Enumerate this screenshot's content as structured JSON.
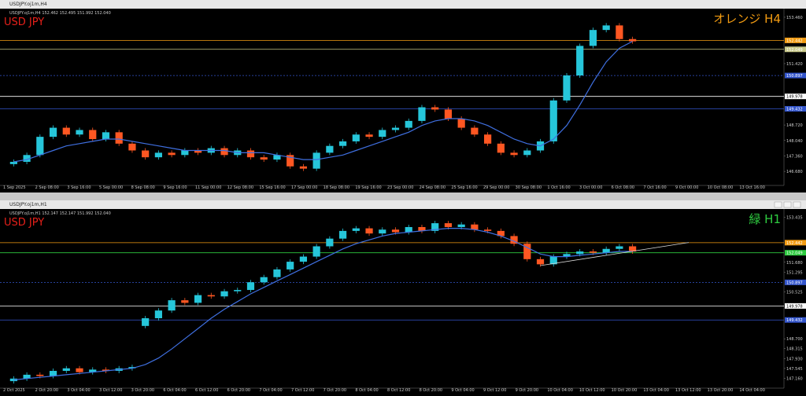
{
  "chart_data": [
    {
      "type": "candlestick",
      "title": "USDJPY.oj1m,H4",
      "header": "USDJPY.oj1m,H4 152.462 152.495 151.992 152.040",
      "symbol_label": "USD JPY",
      "tf_label": "オレンジ H4",
      "tf_color": "#f39c12",
      "up_color": "#26c6da",
      "down_color": "#ff5722",
      "ma_color": "#3f6fe0",
      "open": [
        147.0,
        147.1,
        147.4,
        148.2,
        148.6,
        148.3,
        148.5,
        148.1,
        148.4,
        147.9,
        147.6,
        147.3,
        147.5,
        147.4,
        147.6,
        147.5,
        147.7,
        147.4,
        147.6,
        147.3,
        147.2,
        147.4,
        146.9,
        146.8,
        147.5,
        147.8,
        148.0,
        148.3,
        148.2,
        148.5,
        148.6,
        148.9,
        149.5,
        149.4,
        149.0,
        148.6,
        148.3,
        147.9,
        147.5,
        147.4,
        147.6,
        148.0,
        149.8,
        150.9,
        152.2,
        152.9,
        153.1,
        152.5
      ],
      "close": [
        147.1,
        147.4,
        148.2,
        148.6,
        148.3,
        148.5,
        148.1,
        148.4,
        147.9,
        147.6,
        147.3,
        147.5,
        147.4,
        147.6,
        147.5,
        147.7,
        147.4,
        147.6,
        147.3,
        147.2,
        147.4,
        146.9,
        146.8,
        147.5,
        147.8,
        148.0,
        148.3,
        148.2,
        148.5,
        148.6,
        148.9,
        149.5,
        149.4,
        149.0,
        148.6,
        148.3,
        147.9,
        147.5,
        147.4,
        147.6,
        148.0,
        149.8,
        150.9,
        152.2,
        152.9,
        153.1,
        152.5,
        152.4
      ],
      "ma": [
        147.1,
        147.2,
        147.4,
        147.6,
        147.8,
        147.9,
        148.0,
        148.1,
        148.1,
        148.0,
        147.9,
        147.8,
        147.7,
        147.6,
        147.6,
        147.6,
        147.6,
        147.5,
        147.5,
        147.5,
        147.4,
        147.3,
        147.2,
        147.2,
        147.3,
        147.4,
        147.6,
        147.8,
        148.0,
        148.2,
        148.4,
        148.7,
        148.9,
        149.0,
        149.0,
        148.9,
        148.7,
        148.4,
        148.1,
        147.9,
        147.8,
        148.1,
        148.7,
        149.6,
        150.6,
        151.5,
        152.1,
        152.4
      ],
      "ylim": [
        146.2,
        153.7
      ],
      "yticks": [
        {
          "value": 146.68,
          "label": "146.680"
        },
        {
          "value": 147.36,
          "label": "147.360"
        },
        {
          "value": 148.04,
          "label": "148.040"
        },
        {
          "value": 148.72,
          "label": "148.720"
        },
        {
          "value": 151.42,
          "label": "151.420"
        },
        {
          "value": 153.46,
          "label": "153.460"
        }
      ],
      "levels": [
        {
          "value": 152.442,
          "label": "152.442",
          "color": "#f39c12",
          "dash": false
        },
        {
          "value": 152.049,
          "label": "152.049",
          "color": "#c9c98a",
          "dash": false
        },
        {
          "value": 150.897,
          "label": "150.897",
          "color": "#3355cc",
          "dash": true
        },
        {
          "value": 149.978,
          "label": "149.978",
          "color": "#ffffff",
          "dash": false
        },
        {
          "value": 149.432,
          "label": "149.432",
          "color": "#3355cc",
          "dash": false
        }
      ],
      "x_labels": [
        "1 Sep 2025",
        "2 Sep 08:00",
        "3 Sep 16:00",
        "5 Sep 00:00",
        "8 Sep 08:00",
        "9 Sep 16:00",
        "11 Sep 00:00",
        "12 Sep 08:00",
        "15 Sep 16:00",
        "17 Sep 00:00",
        "18 Sep 08:00",
        "19 Sep 16:00",
        "23 Sep 00:00",
        "24 Sep 08:00",
        "25 Sep 16:00",
        "29 Sep 00:00",
        "30 Sep 08:00",
        "1 Oct 16:00",
        "3 Oct 00:00",
        "6 Oct 08:00",
        "7 Oct 16:00",
        "9 Oct 00:00",
        "10 Oct 08:00",
        "13 Oct 16:00"
      ]
    },
    {
      "type": "candlestick",
      "title": "USDJPY.oj1m,H1",
      "header": "USDJPY.oj1m,H1 152.147 152.147 151.992 152.040",
      "symbol_label": "USD JPY",
      "tf_label": "緑 H1",
      "tf_color": "#2ecc40",
      "up_color": "#26c6da",
      "down_color": "#ff5722",
      "ma_color": "#3f6fe0",
      "open": [
        147.05,
        147.15,
        147.3,
        147.25,
        147.45,
        147.55,
        147.4,
        147.5,
        147.45,
        147.55,
        149.2,
        149.5,
        149.8,
        150.2,
        150.1,
        150.4,
        150.35,
        150.55,
        150.6,
        150.9,
        151.1,
        151.4,
        151.7,
        151.9,
        152.3,
        152.6,
        152.9,
        153.0,
        152.8,
        152.95,
        152.85,
        153.05,
        152.9,
        153.2,
        153.05,
        153.15,
        152.95,
        152.9,
        152.7,
        152.4,
        151.8,
        151.6,
        151.9,
        152.0,
        152.1,
        152.05,
        152.2,
        152.3
      ],
      "close": [
        147.15,
        147.3,
        147.25,
        147.45,
        147.55,
        147.4,
        147.5,
        147.45,
        147.55,
        147.6,
        149.5,
        149.8,
        150.2,
        150.1,
        150.4,
        150.35,
        150.55,
        150.6,
        150.9,
        151.1,
        151.4,
        151.7,
        151.9,
        152.3,
        152.6,
        152.9,
        153.0,
        152.8,
        152.95,
        152.85,
        153.05,
        152.9,
        153.2,
        153.05,
        153.15,
        152.95,
        152.9,
        152.7,
        152.4,
        151.8,
        151.6,
        151.9,
        152.0,
        152.1,
        152.05,
        152.2,
        152.3,
        152.1
      ],
      "ma": [
        147.1,
        147.15,
        147.2,
        147.25,
        147.3,
        147.35,
        147.4,
        147.45,
        147.5,
        147.55,
        147.7,
        147.95,
        148.3,
        148.7,
        149.1,
        149.5,
        149.85,
        150.15,
        150.45,
        150.7,
        150.95,
        151.2,
        151.45,
        151.7,
        151.95,
        152.2,
        152.4,
        152.55,
        152.7,
        152.8,
        152.85,
        152.9,
        152.95,
        153.0,
        153.0,
        152.95,
        152.85,
        152.7,
        152.5,
        152.25,
        152.0,
        151.9,
        151.9,
        151.95,
        152.0,
        152.05,
        152.1,
        152.1
      ],
      "trendline": [
        151.55,
        152.45
      ],
      "ylim": [
        146.9,
        153.6
      ],
      "yticks": [
        {
          "value": 147.16,
          "label": "147.160"
        },
        {
          "value": 147.545,
          "label": "147.545"
        },
        {
          "value": 147.93,
          "label": "147.930"
        },
        {
          "value": 148.315,
          "label": "148.315"
        },
        {
          "value": 148.7,
          "label": "148.700"
        },
        {
          "value": 150.525,
          "label": "150.525"
        },
        {
          "value": 151.295,
          "label": "151.295"
        },
        {
          "value": 151.68,
          "label": "151.680"
        },
        {
          "value": 153.435,
          "label": "153.435"
        }
      ],
      "levels": [
        {
          "value": 152.442,
          "label": "152.442",
          "color": "#f39c12",
          "dash": false
        },
        {
          "value": 152.049,
          "label": "152.049",
          "color": "#2ecc40",
          "dash": false
        },
        {
          "value": 150.897,
          "label": "150.897",
          "color": "#3355cc",
          "dash": true
        },
        {
          "value": 149.978,
          "label": "149.978",
          "color": "#ffffff",
          "dash": false
        },
        {
          "value": 149.432,
          "label": "149.432",
          "color": "#3355cc",
          "dash": false
        }
      ],
      "x_labels": [
        "2 Oct 2025",
        "2 Oct 20:00",
        "3 Oct 04:00",
        "3 Oct 12:00",
        "3 Oct 20:00",
        "6 Oct 04:00",
        "6 Oct 12:00",
        "6 Oct 20:00",
        "7 Oct 04:00",
        "7 Oct 12:00",
        "7 Oct 20:00",
        "8 Oct 04:00",
        "8 Oct 12:00",
        "8 Oct 20:00",
        "9 Oct 04:00",
        "9 Oct 12:00",
        "9 Oct 20:00",
        "10 Oct 04:00",
        "10 Oct 12:00",
        "10 Oct 20:00",
        "13 Oct 04:00",
        "13 Oct 12:00",
        "13 Oct 20:00",
        "14 Oct 04:00"
      ]
    }
  ]
}
